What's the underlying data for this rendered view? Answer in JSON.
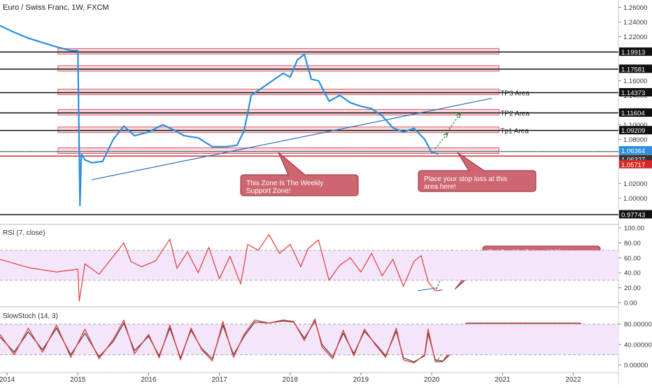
{
  "title": "Euro / Swiss Franc, 1W, FXCM",
  "colors": {
    "price_line": "#2a8fe0",
    "rsi_line": "#e5393a",
    "stoch_k": "#e5393a",
    "stoch_d": "#4a4a4a",
    "zone_fill": "#f8d9dd",
    "zone_stroke": "#e05a6a",
    "callout_fill": "#cd6670",
    "callout_stroke": "#9a2a35",
    "arrow": "#1f8a3a",
    "level_line": "#111111",
    "support_line": "#d62828",
    "band_fill": "#f3e6fb"
  },
  "panels": {
    "rsi_label": "RSI (7, close)",
    "stoch_label": "SlowStoch (14, 3)"
  },
  "annotations": {
    "tp3": "TP3 Area",
    "tp2": "TP2 Area",
    "tp1": "Tp1 Area",
    "callout_support": "This Zone Is The Weekly Support Zone!",
    "callout_stop": "Place your stop loss at this area here!",
    "callout_rsi": "Rsi Double Bottom With Divergence",
    "callout_stoch": "Slow Stochastics Has Given The Buy Signal"
  },
  "chart_data": [
    {
      "type": "line",
      "name": "price",
      "title": "Euro / Swiss Franc, 1W, FXCM",
      "ylim": [
        0.965,
        1.27
      ],
      "x_ticks": [
        "2014",
        "2015",
        "2016",
        "2017",
        "2018",
        "2019",
        "2020",
        "2021",
        "2022"
      ],
      "y_ticks": [
        "1.26000",
        "1.24000",
        "1.22000",
        "1.16000",
        "1.14000",
        "1.12000",
        "1.10000",
        "1.08000",
        "1.02000",
        "1.00000"
      ],
      "x": [
        2013.9,
        2014.1,
        2014.3,
        2014.5,
        2014.7,
        2014.9,
        2015.0,
        2015.03,
        2015.05,
        2015.1,
        2015.2,
        2015.35,
        2015.5,
        2015.65,
        2015.8,
        2016.0,
        2016.2,
        2016.35,
        2016.5,
        2016.7,
        2016.9,
        2017.1,
        2017.25,
        2017.35,
        2017.45,
        2017.6,
        2017.75,
        2017.9,
        2018.0,
        2018.1,
        2018.2,
        2018.3,
        2018.4,
        2018.55,
        2018.7,
        2018.85,
        2019.0,
        2019.15,
        2019.3,
        2019.45,
        2019.6,
        2019.75,
        2019.9,
        2020.0,
        2020.1
      ],
      "y": [
        1.235,
        1.226,
        1.218,
        1.212,
        1.206,
        1.201,
        1.201,
        0.99,
        1.06,
        1.052,
        1.048,
        1.05,
        1.08,
        1.098,
        1.085,
        1.09,
        1.1,
        1.093,
        1.085,
        1.082,
        1.07,
        1.07,
        1.072,
        1.092,
        1.14,
        1.15,
        1.16,
        1.17,
        1.165,
        1.188,
        1.196,
        1.162,
        1.16,
        1.132,
        1.14,
        1.13,
        1.125,
        1.122,
        1.112,
        1.096,
        1.09,
        1.095,
        1.08,
        1.062,
        1.06
      ],
      "horizontal_levels": [
        "1.19913",
        "1.17581",
        "1.14373",
        "1.11604",
        "1.09209",
        "1.06364",
        "1.06327",
        "1.05717",
        "0.97743"
      ],
      "zones": [
        1.19913,
        1.17581,
        1.14373,
        1.11604,
        1.09209,
        1.06364
      ],
      "trendline": {
        "x": [
          2015.2,
          2020.85
        ],
        "y": [
          1.025,
          1.136
        ]
      }
    },
    {
      "type": "line",
      "name": "rsi",
      "title": "RSI (7, close)",
      "ylim": [
        0,
        100
      ],
      "y_ticks": [
        "100.00",
        "80.00",
        "60.00",
        "40.00",
        "20.00",
        "0.00"
      ],
      "bands": [
        30,
        70
      ],
      "x": [
        2013.9,
        2014.3,
        2014.7,
        2015.0,
        2015.02,
        2015.1,
        2015.3,
        2015.5,
        2015.65,
        2015.75,
        2015.9,
        2016.1,
        2016.3,
        2016.4,
        2016.55,
        2016.7,
        2016.85,
        2017.0,
        2017.15,
        2017.3,
        2017.4,
        2017.55,
        2017.7,
        2017.85,
        2018.0,
        2018.15,
        2018.25,
        2018.4,
        2018.55,
        2018.7,
        2018.85,
        2019.0,
        2019.15,
        2019.3,
        2019.45,
        2019.6,
        2019.75,
        2019.85,
        2019.95,
        2020.05,
        2020.15
      ],
      "y": [
        58,
        47,
        41,
        45,
        2,
        52,
        38,
        62,
        80,
        55,
        48,
        56,
        85,
        46,
        68,
        40,
        74,
        32,
        62,
        25,
        78,
        70,
        91,
        66,
        78,
        48,
        72,
        84,
        30,
        50,
        60,
        41,
        66,
        36,
        58,
        22,
        55,
        63,
        28,
        16,
        17
      ]
    },
    {
      "type": "line",
      "name": "slowstoch",
      "title": "SlowStoch (14, 3)",
      "ylim": [
        0,
        100
      ],
      "y_ticks": [
        "80.00000",
        "40.00000",
        "0.00000"
      ],
      "bands": [
        20,
        80
      ],
      "x": [
        2013.9,
        2014.1,
        2014.3,
        2014.5,
        2014.7,
        2014.9,
        2015.1,
        2015.3,
        2015.5,
        2015.65,
        2015.8,
        2016.0,
        2016.15,
        2016.3,
        2016.45,
        2016.6,
        2016.75,
        2016.9,
        2017.05,
        2017.2,
        2017.35,
        2017.5,
        2017.7,
        2017.9,
        2018.05,
        2018.2,
        2018.35,
        2018.45,
        2018.6,
        2018.75,
        2018.9,
        2019.05,
        2019.2,
        2019.35,
        2019.5,
        2019.6,
        2019.75,
        2019.9,
        2019.95,
        2020.05,
        2020.15
      ],
      "k": [
        60,
        20,
        72,
        25,
        78,
        15,
        70,
        12,
        50,
        88,
        22,
        60,
        14,
        78,
        10,
        72,
        30,
        8,
        85,
        15,
        60,
        88,
        82,
        88,
        85,
        48,
        90,
        35,
        12,
        68,
        18,
        70,
        40,
        15,
        72,
        10,
        4,
        20,
        70,
        6,
        6
      ],
      "d": [
        55,
        25,
        65,
        30,
        72,
        20,
        62,
        16,
        46,
        82,
        28,
        56,
        18,
        72,
        14,
        68,
        32,
        12,
        78,
        20,
        56,
        84,
        82,
        86,
        84,
        52,
        86,
        40,
        16,
        62,
        22,
        66,
        42,
        18,
        66,
        14,
        6,
        18,
        62,
        10,
        8
      ]
    }
  ]
}
